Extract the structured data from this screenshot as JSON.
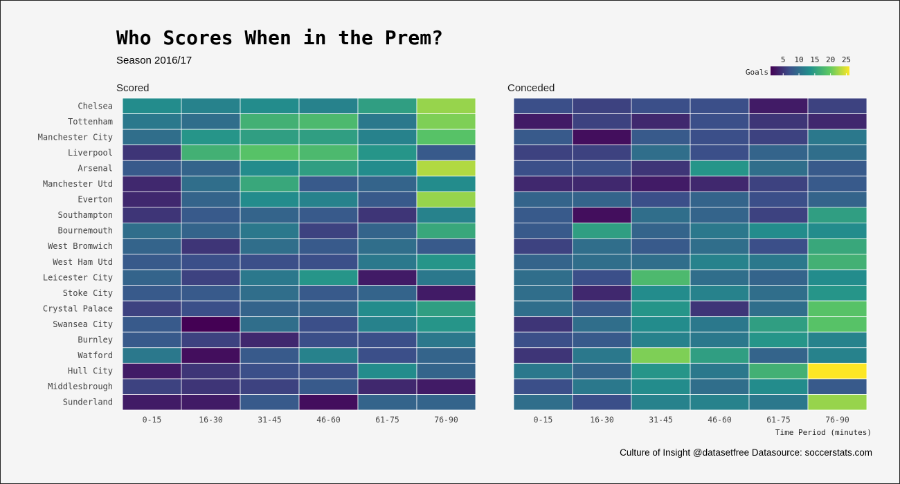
{
  "title": "Who Scores When in the Prem?",
  "subtitle": "Season 2016/17",
  "caption": "Culture of Insight @datasetfree Datasource: soccerstats.com",
  "chart_data": {
    "type": "heatmap",
    "xlabel": "Time Period (minutes)",
    "legend": {
      "title": "Goals",
      "ticks": [
        5,
        10,
        15,
        20,
        25
      ],
      "range": [
        1,
        26
      ],
      "palette": "viridis",
      "placement": "top-right"
    },
    "periods": [
      "0-15",
      "16-30",
      "31-45",
      "46-60",
      "61-75",
      "76-90"
    ],
    "teams": [
      "Chelsea",
      "Tottenham",
      "Manchester City",
      "Liverpool",
      "Arsenal",
      "Manchester Utd",
      "Everton",
      "Southampton",
      "Bournemouth",
      "West Bromwich",
      "West Ham Utd",
      "Leicester City",
      "Stoke City",
      "Crystal Palace",
      "Swansea City",
      "Burnley",
      "Watford",
      "Hull City",
      "Middlesbrough",
      "Sunderland"
    ],
    "panels": [
      {
        "name": "Scored",
        "values": [
          [
            13,
            12,
            13,
            12,
            15,
            22
          ],
          [
            11,
            10,
            17,
            18,
            11,
            21
          ],
          [
            10,
            14,
            15,
            15,
            12,
            19
          ],
          [
            5,
            17,
            19,
            18,
            14,
            8
          ],
          [
            8,
            9,
            13,
            15,
            13,
            23
          ],
          [
            4,
            10,
            16,
            8,
            9,
            13
          ],
          [
            4,
            9,
            13,
            12,
            8,
            22
          ],
          [
            5,
            8,
            9,
            8,
            5,
            12
          ],
          [
            10,
            9,
            11,
            6,
            9,
            16
          ],
          [
            9,
            5,
            10,
            8,
            10,
            8
          ],
          [
            8,
            7,
            7,
            7,
            11,
            14
          ],
          [
            9,
            6,
            11,
            14,
            3,
            11
          ],
          [
            8,
            8,
            10,
            8,
            9,
            3
          ],
          [
            6,
            7,
            9,
            9,
            13,
            15
          ],
          [
            8,
            1,
            10,
            7,
            12,
            14
          ],
          [
            8,
            6,
            4,
            7,
            7,
            11
          ],
          [
            11,
            2,
            8,
            12,
            7,
            9
          ],
          [
            3,
            5,
            7,
            7,
            13,
            9
          ],
          [
            6,
            5,
            6,
            8,
            4,
            3
          ],
          [
            3,
            3,
            8,
            2,
            9,
            9
          ]
        ]
      },
      {
        "name": "Conceded",
        "values": [
          [
            7,
            6,
            7,
            7,
            3,
            6
          ],
          [
            3,
            6,
            4,
            7,
            5,
            4
          ],
          [
            8,
            2,
            8,
            7,
            6,
            11
          ],
          [
            6,
            6,
            10,
            7,
            9,
            10
          ],
          [
            7,
            7,
            5,
            14,
            10,
            8
          ],
          [
            4,
            4,
            3,
            4,
            6,
            8
          ],
          [
            9,
            9,
            7,
            9,
            7,
            9
          ],
          [
            8,
            2,
            10,
            9,
            6,
            15
          ],
          [
            8,
            15,
            9,
            11,
            13,
            13
          ],
          [
            6,
            10,
            8,
            10,
            7,
            16
          ],
          [
            9,
            10,
            10,
            12,
            11,
            17
          ],
          [
            10,
            7,
            18,
            10,
            9,
            13
          ],
          [
            10,
            4,
            13,
            12,
            10,
            14
          ],
          [
            10,
            8,
            14,
            5,
            10,
            19
          ],
          [
            5,
            10,
            13,
            11,
            15,
            19
          ],
          [
            7,
            8,
            12,
            11,
            14,
            12
          ],
          [
            5,
            11,
            21,
            15,
            9,
            12
          ],
          [
            11,
            9,
            14,
            11,
            17,
            26
          ],
          [
            7,
            11,
            13,
            10,
            13,
            8
          ],
          [
            10,
            7,
            12,
            12,
            11,
            22
          ]
        ]
      }
    ]
  }
}
